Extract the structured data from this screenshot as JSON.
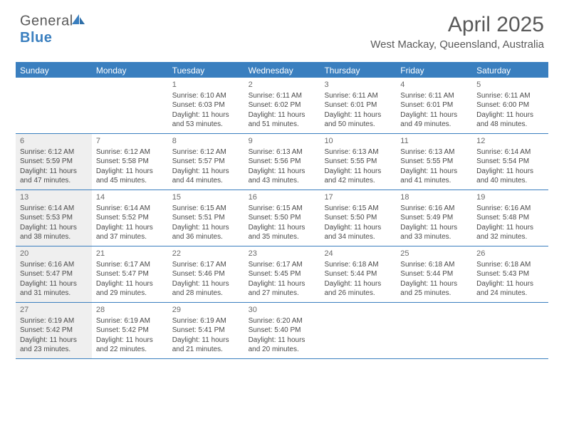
{
  "logo": {
    "text1": "General",
    "text2": "Blue"
  },
  "title": "April 2025",
  "location": "West Mackay, Queensland, Australia",
  "colors": {
    "accent": "#3a7fbf",
    "shaded": "#efefef",
    "text": "#4a4a4a",
    "title": "#595959"
  },
  "day_headers": [
    "Sunday",
    "Monday",
    "Tuesday",
    "Wednesday",
    "Thursday",
    "Friday",
    "Saturday"
  ],
  "weeks": [
    [
      {
        "shaded": false
      },
      {
        "shaded": false
      },
      {
        "day": "1",
        "sunrise": "Sunrise: 6:10 AM",
        "sunset": "Sunset: 6:03 PM",
        "dl1": "Daylight: 11 hours",
        "dl2": "and 53 minutes.",
        "shaded": false
      },
      {
        "day": "2",
        "sunrise": "Sunrise: 6:11 AM",
        "sunset": "Sunset: 6:02 PM",
        "dl1": "Daylight: 11 hours",
        "dl2": "and 51 minutes.",
        "shaded": false
      },
      {
        "day": "3",
        "sunrise": "Sunrise: 6:11 AM",
        "sunset": "Sunset: 6:01 PM",
        "dl1": "Daylight: 11 hours",
        "dl2": "and 50 minutes.",
        "shaded": false
      },
      {
        "day": "4",
        "sunrise": "Sunrise: 6:11 AM",
        "sunset": "Sunset: 6:01 PM",
        "dl1": "Daylight: 11 hours",
        "dl2": "and 49 minutes.",
        "shaded": false
      },
      {
        "day": "5",
        "sunrise": "Sunrise: 6:11 AM",
        "sunset": "Sunset: 6:00 PM",
        "dl1": "Daylight: 11 hours",
        "dl2": "and 48 minutes.",
        "shaded": false
      }
    ],
    [
      {
        "day": "6",
        "sunrise": "Sunrise: 6:12 AM",
        "sunset": "Sunset: 5:59 PM",
        "dl1": "Daylight: 11 hours",
        "dl2": "and 47 minutes.",
        "shaded": true
      },
      {
        "day": "7",
        "sunrise": "Sunrise: 6:12 AM",
        "sunset": "Sunset: 5:58 PM",
        "dl1": "Daylight: 11 hours",
        "dl2": "and 45 minutes.",
        "shaded": false
      },
      {
        "day": "8",
        "sunrise": "Sunrise: 6:12 AM",
        "sunset": "Sunset: 5:57 PM",
        "dl1": "Daylight: 11 hours",
        "dl2": "and 44 minutes.",
        "shaded": false
      },
      {
        "day": "9",
        "sunrise": "Sunrise: 6:13 AM",
        "sunset": "Sunset: 5:56 PM",
        "dl1": "Daylight: 11 hours",
        "dl2": "and 43 minutes.",
        "shaded": false
      },
      {
        "day": "10",
        "sunrise": "Sunrise: 6:13 AM",
        "sunset": "Sunset: 5:55 PM",
        "dl1": "Daylight: 11 hours",
        "dl2": "and 42 minutes.",
        "shaded": false
      },
      {
        "day": "11",
        "sunrise": "Sunrise: 6:13 AM",
        "sunset": "Sunset: 5:55 PM",
        "dl1": "Daylight: 11 hours",
        "dl2": "and 41 minutes.",
        "shaded": false
      },
      {
        "day": "12",
        "sunrise": "Sunrise: 6:14 AM",
        "sunset": "Sunset: 5:54 PM",
        "dl1": "Daylight: 11 hours",
        "dl2": "and 40 minutes.",
        "shaded": false
      }
    ],
    [
      {
        "day": "13",
        "sunrise": "Sunrise: 6:14 AM",
        "sunset": "Sunset: 5:53 PM",
        "dl1": "Daylight: 11 hours",
        "dl2": "and 38 minutes.",
        "shaded": true
      },
      {
        "day": "14",
        "sunrise": "Sunrise: 6:14 AM",
        "sunset": "Sunset: 5:52 PM",
        "dl1": "Daylight: 11 hours",
        "dl2": "and 37 minutes.",
        "shaded": false
      },
      {
        "day": "15",
        "sunrise": "Sunrise: 6:15 AM",
        "sunset": "Sunset: 5:51 PM",
        "dl1": "Daylight: 11 hours",
        "dl2": "and 36 minutes.",
        "shaded": false
      },
      {
        "day": "16",
        "sunrise": "Sunrise: 6:15 AM",
        "sunset": "Sunset: 5:50 PM",
        "dl1": "Daylight: 11 hours",
        "dl2": "and 35 minutes.",
        "shaded": false
      },
      {
        "day": "17",
        "sunrise": "Sunrise: 6:15 AM",
        "sunset": "Sunset: 5:50 PM",
        "dl1": "Daylight: 11 hours",
        "dl2": "and 34 minutes.",
        "shaded": false
      },
      {
        "day": "18",
        "sunrise": "Sunrise: 6:16 AM",
        "sunset": "Sunset: 5:49 PM",
        "dl1": "Daylight: 11 hours",
        "dl2": "and 33 minutes.",
        "shaded": false
      },
      {
        "day": "19",
        "sunrise": "Sunrise: 6:16 AM",
        "sunset": "Sunset: 5:48 PM",
        "dl1": "Daylight: 11 hours",
        "dl2": "and 32 minutes.",
        "shaded": false
      }
    ],
    [
      {
        "day": "20",
        "sunrise": "Sunrise: 6:16 AM",
        "sunset": "Sunset: 5:47 PM",
        "dl1": "Daylight: 11 hours",
        "dl2": "and 31 minutes.",
        "shaded": true
      },
      {
        "day": "21",
        "sunrise": "Sunrise: 6:17 AM",
        "sunset": "Sunset: 5:47 PM",
        "dl1": "Daylight: 11 hours",
        "dl2": "and 29 minutes.",
        "shaded": false
      },
      {
        "day": "22",
        "sunrise": "Sunrise: 6:17 AM",
        "sunset": "Sunset: 5:46 PM",
        "dl1": "Daylight: 11 hours",
        "dl2": "and 28 minutes.",
        "shaded": false
      },
      {
        "day": "23",
        "sunrise": "Sunrise: 6:17 AM",
        "sunset": "Sunset: 5:45 PM",
        "dl1": "Daylight: 11 hours",
        "dl2": "and 27 minutes.",
        "shaded": false
      },
      {
        "day": "24",
        "sunrise": "Sunrise: 6:18 AM",
        "sunset": "Sunset: 5:44 PM",
        "dl1": "Daylight: 11 hours",
        "dl2": "and 26 minutes.",
        "shaded": false
      },
      {
        "day": "25",
        "sunrise": "Sunrise: 6:18 AM",
        "sunset": "Sunset: 5:44 PM",
        "dl1": "Daylight: 11 hours",
        "dl2": "and 25 minutes.",
        "shaded": false
      },
      {
        "day": "26",
        "sunrise": "Sunrise: 6:18 AM",
        "sunset": "Sunset: 5:43 PM",
        "dl1": "Daylight: 11 hours",
        "dl2": "and 24 minutes.",
        "shaded": false
      }
    ],
    [
      {
        "day": "27",
        "sunrise": "Sunrise: 6:19 AM",
        "sunset": "Sunset: 5:42 PM",
        "dl1": "Daylight: 11 hours",
        "dl2": "and 23 minutes.",
        "shaded": true
      },
      {
        "day": "28",
        "sunrise": "Sunrise: 6:19 AM",
        "sunset": "Sunset: 5:42 PM",
        "dl1": "Daylight: 11 hours",
        "dl2": "and 22 minutes.",
        "shaded": false
      },
      {
        "day": "29",
        "sunrise": "Sunrise: 6:19 AM",
        "sunset": "Sunset: 5:41 PM",
        "dl1": "Daylight: 11 hours",
        "dl2": "and 21 minutes.",
        "shaded": false
      },
      {
        "day": "30",
        "sunrise": "Sunrise: 6:20 AM",
        "sunset": "Sunset: 5:40 PM",
        "dl1": "Daylight: 11 hours",
        "dl2": "and 20 minutes.",
        "shaded": false
      },
      {
        "shaded": false
      },
      {
        "shaded": false
      },
      {
        "shaded": false
      }
    ]
  ]
}
